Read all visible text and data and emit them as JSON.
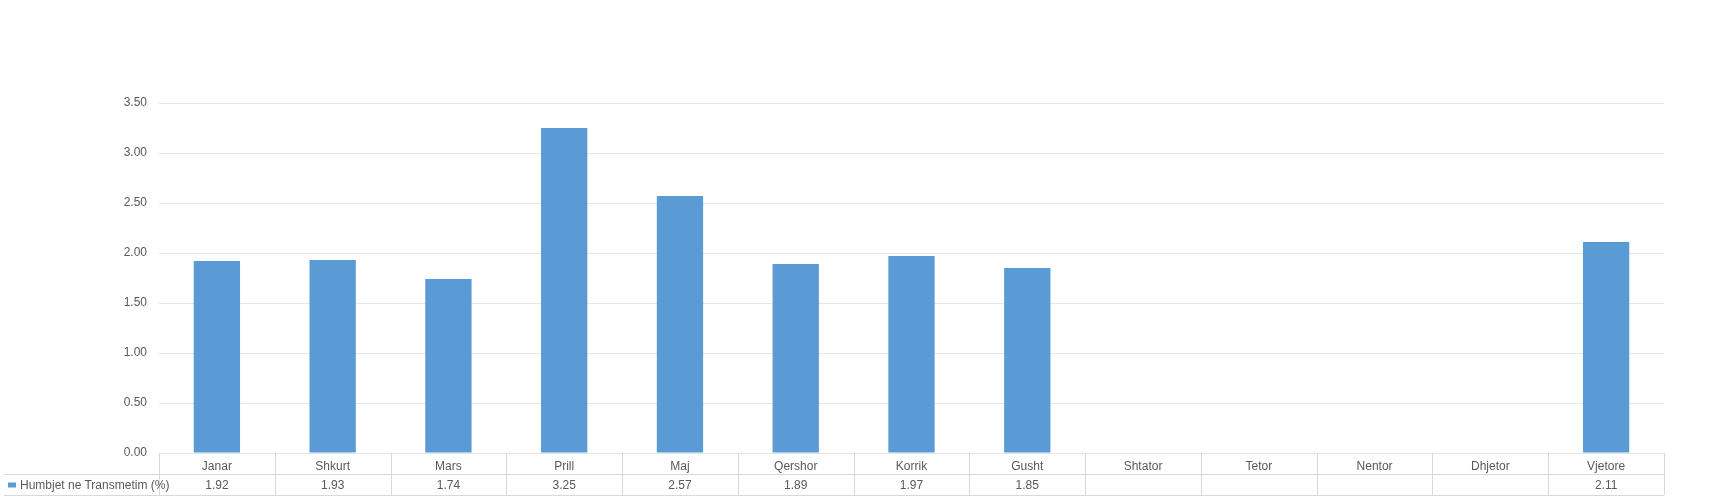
{
  "chart_data": {
    "type": "bar",
    "categories": [
      "Janar",
      "Shkurt",
      "Mars",
      "Prill",
      "Maj",
      "Qershor",
      "Korrik",
      "Gusht",
      "Shtator",
      "Tetor",
      "Nentor",
      "Dhjetor",
      "Vjetore"
    ],
    "series": [
      {
        "name": "Humbjet ne Transmetim (%)",
        "color": "#5b9bd5",
        "values": [
          1.92,
          1.93,
          1.74,
          3.25,
          2.57,
          1.89,
          1.97,
          1.85,
          null,
          null,
          null,
          null,
          2.11
        ]
      }
    ],
    "ylim": [
      0,
      3.5
    ],
    "yticks": [
      {
        "value": 0,
        "label": "0.00"
      },
      {
        "value": 0.5,
        "label": "0.50"
      },
      {
        "value": 1,
        "label": "1.00"
      },
      {
        "value": 1.5,
        "label": "1.50"
      },
      {
        "value": 2,
        "label": "2.00"
      },
      {
        "value": 2.5,
        "label": "2.50"
      },
      {
        "value": 3,
        "label": "3.00"
      },
      {
        "value": 3.5,
        "label": "3.50"
      }
    ],
    "grid": "y",
    "legend": "bottom left",
    "data_labels": true
  }
}
